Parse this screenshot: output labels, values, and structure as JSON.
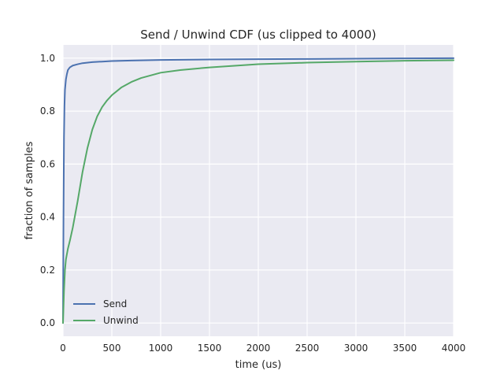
{
  "chart_data": {
    "type": "line",
    "title": "Send / Unwind CDF (us clipped to 4000)",
    "xlabel": "time (us)",
    "ylabel": "fraction of samples",
    "xlim": [
      0,
      4000
    ],
    "ylim": [
      -0.05,
      1.05
    ],
    "xticks": [
      "0",
      "500",
      "1000",
      "1500",
      "2000",
      "2500",
      "3000",
      "3500",
      "4000"
    ],
    "yticks": [
      "0.0",
      "0.2",
      "0.4",
      "0.6",
      "0.8",
      "1.0"
    ],
    "grid": true,
    "legend_position": "lower-left",
    "series": [
      {
        "name": "Send",
        "color": "#4c72b0",
        "x": [
          0,
          5,
          10,
          15,
          20,
          30,
          40,
          50,
          70,
          100,
          150,
          200,
          300,
          400,
          500,
          700,
          1000,
          1500,
          2000,
          2500,
          3000,
          3500,
          4000
        ],
        "y": [
          0.0,
          0.4,
          0.7,
          0.82,
          0.88,
          0.92,
          0.94,
          0.955,
          0.965,
          0.972,
          0.977,
          0.981,
          0.985,
          0.987,
          0.989,
          0.991,
          0.993,
          0.995,
          0.996,
          0.997,
          0.998,
          0.999,
          1.0
        ]
      },
      {
        "name": "Unwind",
        "color": "#55a868",
        "x": [
          0,
          10,
          20,
          30,
          50,
          70,
          100,
          150,
          200,
          250,
          300,
          350,
          400,
          450,
          500,
          600,
          700,
          800,
          1000,
          1200,
          1500,
          2000,
          2500,
          3000,
          3500,
          4000
        ],
        "y": [
          0.0,
          0.12,
          0.2,
          0.24,
          0.28,
          0.31,
          0.36,
          0.46,
          0.57,
          0.66,
          0.73,
          0.78,
          0.815,
          0.84,
          0.86,
          0.89,
          0.91,
          0.925,
          0.945,
          0.955,
          0.965,
          0.977,
          0.983,
          0.987,
          0.99,
          0.992
        ]
      }
    ]
  }
}
